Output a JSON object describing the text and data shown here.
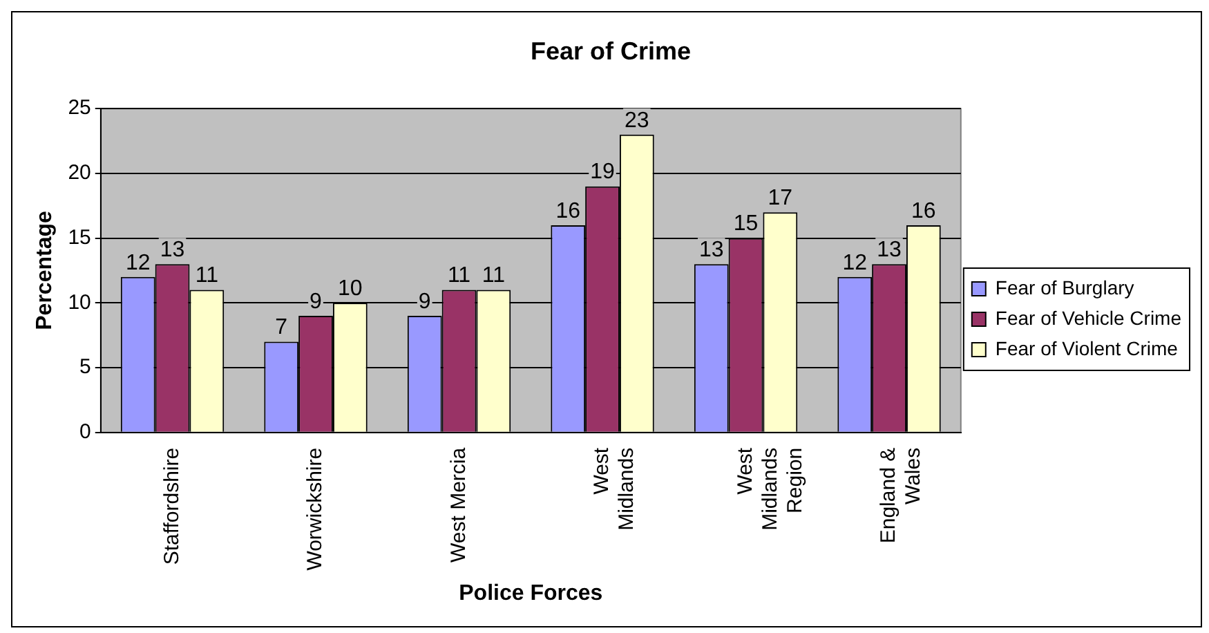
{
  "chart_data": {
    "type": "bar",
    "title": "Fear of Crime",
    "xlabel": "Police Forces",
    "ylabel": "Percentage",
    "categories": [
      "Staffordshire",
      "Worwickshire",
      "West Mercia",
      "West Midlands",
      "West Midlands Region",
      "England & Wales"
    ],
    "series": [
      {
        "name": "Fear of Burglary",
        "color": "#9999ff",
        "values": [
          12,
          7,
          9,
          16,
          13,
          12
        ]
      },
      {
        "name": "Fear of Vehicle Crime",
        "color": "#993366",
        "values": [
          13,
          9,
          11,
          19,
          15,
          13
        ]
      },
      {
        "name": "Fear of Violent Crime",
        "color": "#ffffcc",
        "values": [
          11,
          10,
          11,
          23,
          17,
          16
        ]
      }
    ],
    "ylim": [
      0,
      25
    ],
    "yticks": [
      0,
      5,
      10,
      15,
      20,
      25
    ],
    "grid": "y",
    "legend": "right",
    "data_labels": true
  }
}
